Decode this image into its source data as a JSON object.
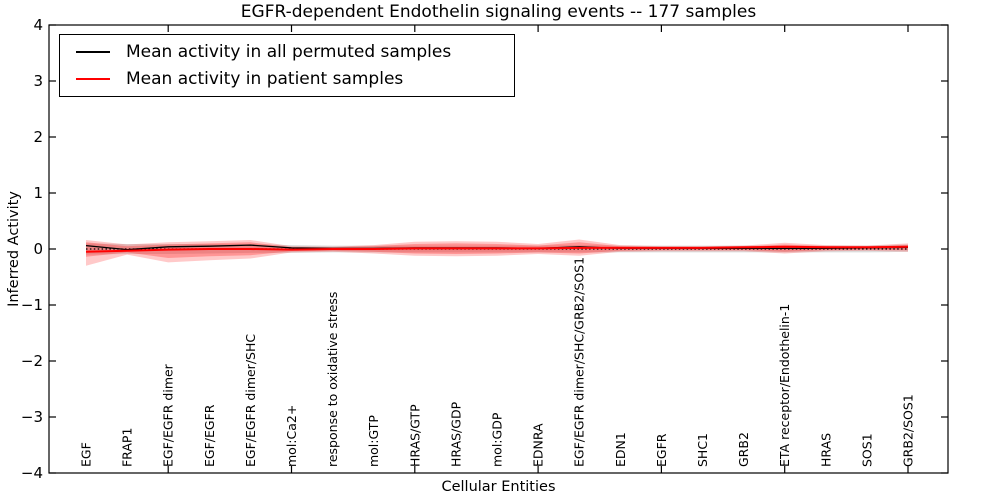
{
  "chart_data": {
    "type": "line",
    "title": "EGFR-dependent Endothelin signaling events -- 177 samples",
    "xlabel": "Cellular Entities",
    "ylabel": "Inferred Activity",
    "ylim": [
      -4,
      4
    ],
    "yticks": [
      4,
      3,
      2,
      1,
      0,
      -1,
      -2,
      -3,
      -4
    ],
    "grid": false,
    "categories": [
      "EGF",
      "FRAP1",
      "EGF/EGFR dimer",
      "EGF/EGFR",
      "EGF/EGFR dimer/SHC",
      "mol:Ca2+",
      "response to oxidative stress",
      "mol:GTP",
      "HRAS/GTP",
      "HRAS/GDP",
      "mol:GDP",
      "EDNRA",
      "EGF/EGFR dimer/SHC/GRB2/SOS1",
      "EDN1",
      "EGFR",
      "SHC1",
      "GRB2",
      "ETA receptor/Endothelin-1",
      "HRAS",
      "SOS1",
      "GRB2/SOS1"
    ],
    "series": [
      {
        "name": "Mean activity in all permuted samples",
        "color": "#000000",
        "width": 1.3,
        "values": [
          0.06,
          -0.01,
          0.04,
          0.05,
          0.07,
          0.02,
          0.01,
          0.01,
          0.02,
          0.02,
          0.02,
          0.01,
          0.04,
          0.01,
          0.01,
          0.01,
          0.01,
          0.01,
          0.01,
          0.02,
          0.03
        ]
      },
      {
        "name": "Mean activity in patient samples",
        "color": "#ff0000",
        "width": 2,
        "values": [
          -0.05,
          -0.03,
          -0.01,
          0.0,
          0.0,
          -0.01,
          0.0,
          0.0,
          0.01,
          0.01,
          0.01,
          0.01,
          0.02,
          0.02,
          0.02,
          0.02,
          0.03,
          0.04,
          0.03,
          0.03,
          0.04
        ]
      }
    ],
    "bands": [
      {
        "name": "permuted-samples-band",
        "fill": "rgba(130,130,130,0.28)",
        "upper": [
          0.1,
          0.09,
          0.09,
          0.09,
          0.09,
          0.07,
          0.06,
          0.06,
          0.06,
          0.06,
          0.06,
          0.06,
          0.07,
          0.06,
          0.06,
          0.06,
          0.06,
          0.06,
          0.06,
          0.06,
          0.08
        ],
        "lower": [
          -0.1,
          -0.09,
          -0.09,
          -0.08,
          -0.07,
          -0.07,
          -0.06,
          -0.06,
          -0.06,
          -0.06,
          -0.06,
          -0.06,
          -0.06,
          -0.06,
          -0.06,
          -0.06,
          -0.06,
          -0.06,
          -0.06,
          -0.06,
          -0.05
        ]
      },
      {
        "name": "patient-samples-band-outer",
        "fill": "rgba(255,40,40,0.25)",
        "upper": [
          0.16,
          0.08,
          0.12,
          0.14,
          0.16,
          0.05,
          0.04,
          0.07,
          0.13,
          0.14,
          0.13,
          0.09,
          0.17,
          0.07,
          0.05,
          0.05,
          0.06,
          0.11,
          0.07,
          0.06,
          0.1
        ],
        "lower": [
          -0.3,
          -0.1,
          -0.24,
          -0.2,
          -0.17,
          -0.06,
          -0.05,
          -0.08,
          -0.12,
          -0.13,
          -0.12,
          -0.09,
          -0.12,
          -0.05,
          -0.04,
          -0.04,
          -0.04,
          -0.08,
          -0.04,
          -0.03,
          -0.05
        ]
      },
      {
        "name": "patient-samples-band-inner",
        "fill": "rgba(255,40,40,0.32)",
        "upper": [
          0.12,
          0.05,
          0.08,
          0.1,
          0.12,
          0.03,
          0.03,
          0.05,
          0.09,
          0.1,
          0.09,
          0.06,
          0.12,
          0.05,
          0.03,
          0.03,
          0.04,
          0.08,
          0.05,
          0.04,
          0.07
        ],
        "lower": [
          -0.14,
          -0.06,
          -0.16,
          -0.13,
          -0.11,
          -0.04,
          -0.03,
          -0.05,
          -0.08,
          -0.09,
          -0.08,
          -0.06,
          -0.08,
          -0.03,
          -0.02,
          -0.02,
          -0.02,
          -0.05,
          -0.02,
          -0.01,
          -0.02
        ]
      }
    ],
    "zero_line": {
      "value": 0,
      "style": "dotted",
      "color": "#000000"
    },
    "legend": {
      "position": "upper left",
      "entries": [
        {
          "label": "Mean activity in all permuted samples",
          "color": "#000000"
        },
        {
          "label": "Mean activity in patient samples",
          "color": "#ff0000"
        }
      ]
    }
  }
}
